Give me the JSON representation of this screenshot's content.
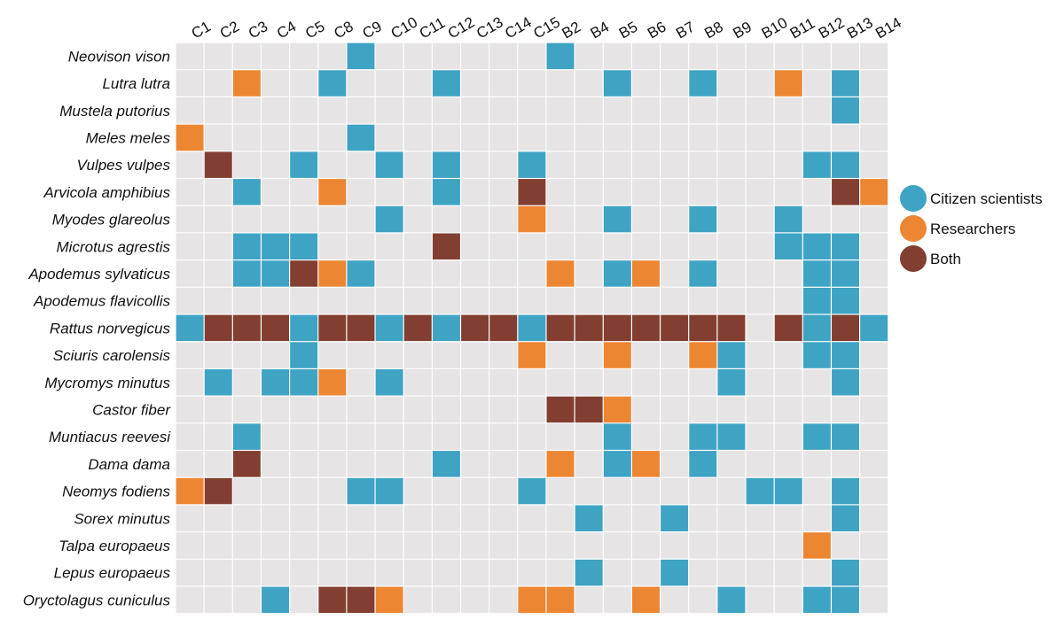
{
  "chart_data": {
    "type": "heatmap",
    "title": "",
    "xlabel": "",
    "ylabel": "",
    "columns": [
      "C1",
      "C2",
      "C3",
      "C4",
      "C5",
      "C8",
      "C9",
      "C10",
      "C11",
      "C12",
      "C13",
      "C14",
      "C15",
      "B2",
      "B4",
      "B5",
      "B6",
      "B7",
      "B8",
      "B9",
      "B10",
      "B11",
      "B12",
      "B13",
      "B14"
    ],
    "rows": [
      "Neovison vison",
      "Lutra lutra",
      "Mustela putorius",
      "Meles meles",
      "Vulpes vulpes",
      "Arvicola amphibius",
      "Myodes glareolus",
      "Microtus agrestis",
      "Apodemus sylvaticus",
      "Apodemus flavicollis",
      "Rattus norvegicus",
      "Sciuris carolensis",
      "Mycromys minutus",
      "Castor fiber",
      "Muntiacus reevesi",
      "Dama dama",
      "Neomys fodiens",
      "Sorex minutus",
      "Talpa europaeus",
      "Lepus europaeus",
      "Oryctolagus cuniculus"
    ],
    "categories": [
      {
        "code": 0,
        "label": "",
        "color": "#e6e4e5"
      },
      {
        "code": 1,
        "label": "Citizen scientists",
        "color": "#3fa3c4"
      },
      {
        "code": 2,
        "label": "Researchers",
        "color": "#ed8632"
      },
      {
        "code": 3,
        "label": "Both",
        "color": "#823e30"
      }
    ],
    "legend": {
      "position": "right",
      "items": [
        {
          "label": "Citizen scientists",
          "code": 1
        },
        {
          "label": "Researchers",
          "code": 2
        },
        {
          "label": "Both",
          "code": 3
        }
      ]
    },
    "values": [
      [
        0,
        0,
        0,
        0,
        0,
        0,
        1,
        0,
        0,
        0,
        0,
        0,
        0,
        1,
        0,
        0,
        0,
        0,
        0,
        0,
        0,
        0,
        0,
        0,
        0
      ],
      [
        0,
        0,
        2,
        0,
        0,
        1,
        0,
        0,
        0,
        1,
        0,
        0,
        0,
        0,
        0,
        1,
        0,
        0,
        1,
        0,
        0,
        2,
        0,
        1,
        0
      ],
      [
        0,
        0,
        0,
        0,
        0,
        0,
        0,
        0,
        0,
        0,
        0,
        0,
        0,
        0,
        0,
        0,
        0,
        0,
        0,
        0,
        0,
        0,
        0,
        1,
        0
      ],
      [
        2,
        0,
        0,
        0,
        0,
        0,
        1,
        0,
        0,
        0,
        0,
        0,
        0,
        0,
        0,
        0,
        0,
        0,
        0,
        0,
        0,
        0,
        0,
        0,
        0
      ],
      [
        0,
        3,
        0,
        0,
        1,
        0,
        0,
        1,
        0,
        1,
        0,
        0,
        1,
        0,
        0,
        0,
        0,
        0,
        0,
        0,
        0,
        0,
        1,
        1,
        0
      ],
      [
        0,
        0,
        1,
        0,
        0,
        2,
        0,
        0,
        0,
        1,
        0,
        0,
        3,
        0,
        0,
        0,
        0,
        0,
        0,
        0,
        0,
        0,
        0,
        3,
        2
      ],
      [
        0,
        0,
        0,
        0,
        0,
        0,
        0,
        1,
        0,
        0,
        0,
        0,
        2,
        0,
        0,
        1,
        0,
        0,
        1,
        0,
        0,
        1,
        0,
        0,
        0
      ],
      [
        0,
        0,
        1,
        1,
        1,
        0,
        0,
        0,
        0,
        3,
        0,
        0,
        0,
        0,
        0,
        0,
        0,
        0,
        0,
        0,
        0,
        1,
        1,
        1,
        0
      ],
      [
        0,
        0,
        1,
        1,
        3,
        2,
        1,
        0,
        0,
        0,
        0,
        0,
        0,
        2,
        0,
        1,
        2,
        0,
        1,
        0,
        0,
        0,
        1,
        1,
        0
      ],
      [
        0,
        0,
        0,
        0,
        0,
        0,
        0,
        0,
        0,
        0,
        0,
        0,
        0,
        0,
        0,
        0,
        0,
        0,
        0,
        0,
        0,
        0,
        1,
        1,
        0
      ],
      [
        1,
        3,
        3,
        3,
        1,
        3,
        3,
        1,
        3,
        1,
        3,
        3,
        1,
        3,
        3,
        3,
        3,
        3,
        3,
        3,
        0,
        3,
        1,
        3,
        1
      ],
      [
        0,
        0,
        0,
        0,
        1,
        0,
        0,
        0,
        0,
        0,
        0,
        0,
        2,
        0,
        0,
        2,
        0,
        0,
        2,
        1,
        0,
        0,
        1,
        1,
        0
      ],
      [
        0,
        1,
        0,
        1,
        1,
        2,
        0,
        1,
        0,
        0,
        0,
        0,
        0,
        0,
        0,
        0,
        0,
        0,
        0,
        1,
        0,
        0,
        0,
        1,
        0
      ],
      [
        0,
        0,
        0,
        0,
        0,
        0,
        0,
        0,
        0,
        0,
        0,
        0,
        0,
        3,
        3,
        2,
        0,
        0,
        0,
        0,
        0,
        0,
        0,
        0,
        0
      ],
      [
        0,
        0,
        1,
        0,
        0,
        0,
        0,
        0,
        0,
        0,
        0,
        0,
        0,
        0,
        0,
        1,
        0,
        0,
        1,
        1,
        0,
        0,
        1,
        1,
        0
      ],
      [
        0,
        0,
        3,
        0,
        0,
        0,
        0,
        0,
        0,
        1,
        0,
        0,
        0,
        2,
        0,
        1,
        2,
        0,
        1,
        0,
        0,
        0,
        0,
        0,
        0
      ],
      [
        2,
        3,
        0,
        0,
        0,
        0,
        1,
        1,
        0,
        0,
        0,
        0,
        1,
        0,
        0,
        0,
        0,
        0,
        0,
        0,
        1,
        1,
        0,
        1,
        0
      ],
      [
        0,
        0,
        0,
        0,
        0,
        0,
        0,
        0,
        0,
        0,
        0,
        0,
        0,
        0,
        1,
        0,
        0,
        1,
        0,
        0,
        0,
        0,
        0,
        1,
        0
      ],
      [
        0,
        0,
        0,
        0,
        0,
        0,
        0,
        0,
        0,
        0,
        0,
        0,
        0,
        0,
        0,
        0,
        0,
        0,
        0,
        0,
        0,
        0,
        2,
        0,
        0
      ],
      [
        0,
        0,
        0,
        0,
        0,
        0,
        0,
        0,
        0,
        0,
        0,
        0,
        0,
        0,
        1,
        0,
        0,
        1,
        0,
        0,
        0,
        0,
        0,
        1,
        0
      ],
      [
        0,
        0,
        0,
        1,
        0,
        3,
        3,
        2,
        0,
        0,
        0,
        0,
        2,
        2,
        0,
        0,
        2,
        0,
        0,
        1,
        0,
        0,
        1,
        1,
        0
      ]
    ]
  }
}
